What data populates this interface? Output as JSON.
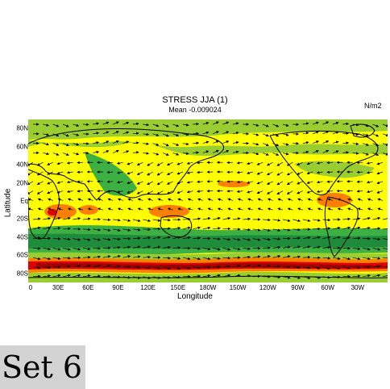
{
  "figure": {
    "title": "STRESS JJA (1)",
    "subtitle": "Mean -0.009024",
    "units": "N/m2",
    "xlabel": "Longitude",
    "ylabel": "Latitude",
    "set_label": "Set 6"
  },
  "axes": {
    "yticks": [
      {
        "label": "80N",
        "lat": 80
      },
      {
        "label": "60N",
        "lat": 60
      },
      {
        "label": "40N",
        "lat": 40
      },
      {
        "label": "20N",
        "lat": 20
      },
      {
        "label": "Eq",
        "lat": 0
      },
      {
        "label": "20S",
        "lat": -20
      },
      {
        "label": "40S",
        "lat": -40
      },
      {
        "label": "60S",
        "lat": -60
      },
      {
        "label": "80S",
        "lat": -80
      }
    ],
    "xticks": [
      {
        "label": "0",
        "lon": 0
      },
      {
        "label": "30E",
        "lon": 30
      },
      {
        "label": "60E",
        "lon": 60
      },
      {
        "label": "90E",
        "lon": 90
      },
      {
        "label": "120E",
        "lon": 120
      },
      {
        "label": "150E",
        "lon": 150
      },
      {
        "label": "180W",
        "lon": 180
      },
      {
        "label": "150W",
        "lon": 210
      },
      {
        "label": "120W",
        "lon": 240
      },
      {
        "label": "90W",
        "lon": 270
      },
      {
        "label": "60W",
        "lon": 300
      },
      {
        "label": "30W",
        "lon": 330
      }
    ],
    "lon_range": [
      0,
      360
    ],
    "lat_range": [
      -90,
      90
    ]
  },
  "colors": {
    "yellow": "#ffff00",
    "green_light": "#9acd32",
    "green": "#3cb043",
    "green_dark": "#1e8c3a",
    "orange": "#ff7f00",
    "red": "#e00000",
    "dark_red": "#a00000"
  }
}
